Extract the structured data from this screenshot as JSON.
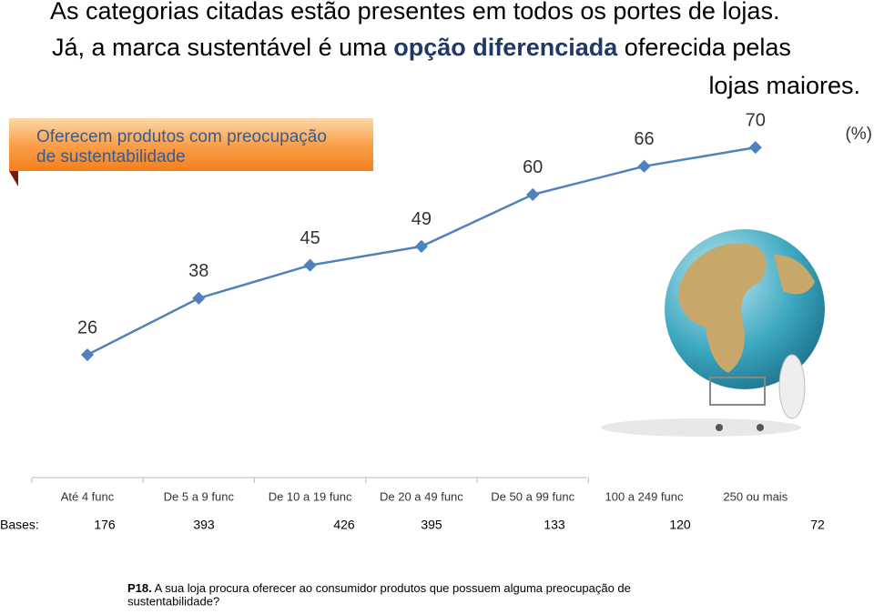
{
  "header": {
    "line1": "As categorias citadas estão presentes em todos os portes de lojas.",
    "line2_start": "Já, a marca sustentável é uma",
    "line2_bold": "opção diferenciada",
    "line2_end": "oferecida pelas",
    "line3": "lojas maiores."
  },
  "chart_data": {
    "type": "line",
    "badge": [
      "Oferecem produtos com preocupação",
      "de sustentabilidade"
    ],
    "unit": "(%)",
    "categories": [
      "Até 4 func",
      "De 5 a 9 func",
      "De 10 a 19 func",
      "De 20 a 49 func",
      "De 50 a 99 func",
      "100 a 249 func",
      "250 ou mais"
    ],
    "series": [
      {
        "name": "Oferecem produtos com preocupação de sustentabilidade",
        "color": "#4f81bd",
        "values": [
          26,
          38,
          45,
          49,
          60,
          66,
          70
        ]
      }
    ]
  },
  "bases": {
    "label": "Bases:",
    "values": [
      176,
      393,
      426,
      395,
      133,
      120,
      72
    ]
  },
  "footnote": {
    "code": "P18.",
    "text": "A sua loja procura oferecer ao consumidor produtos que possuem alguma preocupação de",
    "text2": "sustentabilidade?"
  }
}
